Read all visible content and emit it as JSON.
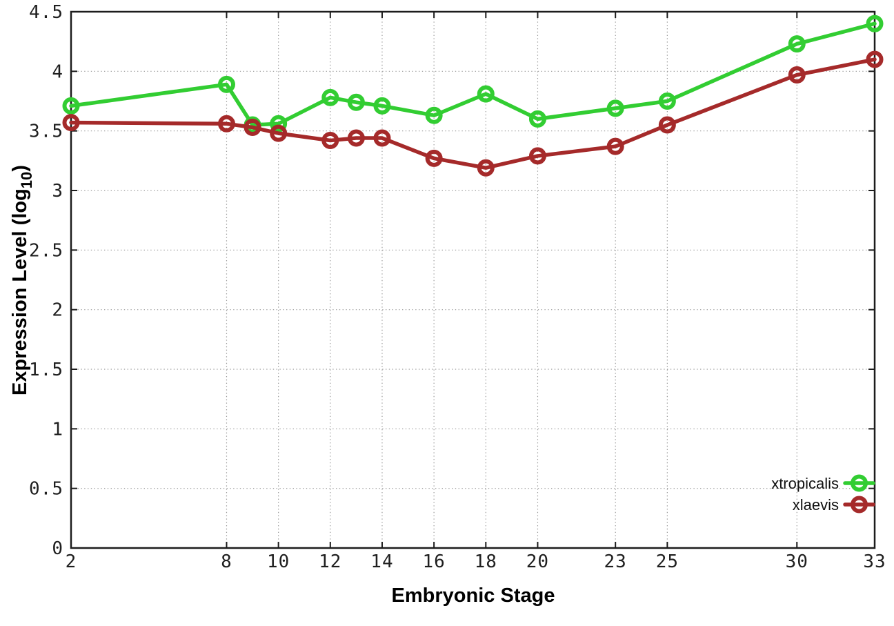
{
  "chart_data": {
    "type": "line",
    "title": "",
    "xlabel": "Embryonic Stage",
    "ylabel_prefix": "Expression Level (log",
    "ylabel_subscript": "10",
    "ylabel_suffix": ")",
    "xlim": [
      2,
      33
    ],
    "ylim": [
      0,
      4.5
    ],
    "x_ticks": [
      2,
      8,
      10,
      12,
      14,
      16,
      18,
      20,
      23,
      25,
      30,
      33
    ],
    "y_ticks": [
      0,
      0.5,
      1,
      1.5,
      2,
      2.5,
      3,
      3.5,
      4,
      4.5
    ],
    "grid": true,
    "legend_position": "bottom-right",
    "x": [
      2,
      8,
      9,
      10,
      12,
      13,
      14,
      16,
      18,
      20,
      23,
      25,
      30,
      33
    ],
    "series": [
      {
        "name": "xtropicalis",
        "color": "#32cd32",
        "marker": "open-circle",
        "values": [
          3.71,
          3.89,
          3.55,
          3.56,
          3.78,
          3.74,
          3.71,
          3.63,
          3.81,
          3.6,
          3.69,
          3.75,
          4.23,
          4.4
        ]
      },
      {
        "name": "xlaevis",
        "color": "#a52a2a",
        "marker": "open-circle",
        "values": [
          3.57,
          3.56,
          3.53,
          3.48,
          3.42,
          3.44,
          3.44,
          3.27,
          3.19,
          3.29,
          3.37,
          3.55,
          3.97,
          4.1
        ]
      }
    ],
    "colors": {
      "grid": "#9a9a9a",
      "axis": "#1c1c1c",
      "background": "#ffffff"
    }
  }
}
